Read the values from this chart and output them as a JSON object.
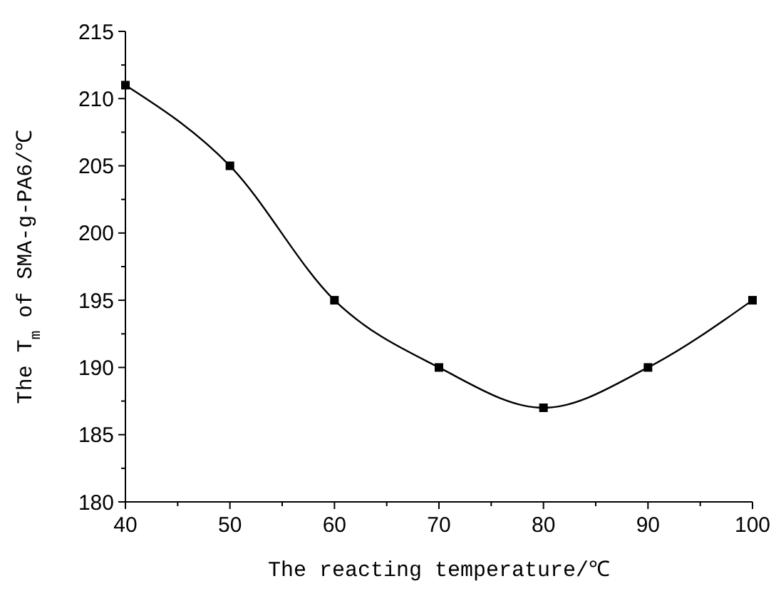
{
  "chart_data": {
    "type": "line",
    "xlabel": "The reacting temperature/℃",
    "ylabel": "The T$_{m}$ of SMA-g-PA6/℃",
    "x": [
      40,
      50,
      60,
      70,
      80,
      90,
      100
    ],
    "series": [
      {
        "color": "#000000",
        "values": [
          211,
          205,
          195,
          190,
          187,
          190,
          195
        ]
      }
    ],
    "marker": "square",
    "line_style": "solid",
    "xlim": [
      40,
      100
    ],
    "xticks": [
      40,
      {
        "value": 45,
        "label": null
      },
      50,
      {
        "value": 55,
        "label": null
      },
      60,
      {
        "value": 65,
        "label": null
      },
      70,
      {
        "value": 75,
        "label": null
      },
      80,
      {
        "value": 85,
        "label": null
      },
      90,
      {
        "value": 95,
        "label": null
      },
      100
    ],
    "ylim": [
      180,
      215
    ],
    "yticks": [
      180,
      {
        "value": 182.5,
        "label": null
      },
      185,
      {
        "value": 187.5,
        "label": null
      },
      190,
      {
        "value": 192.5,
        "label": null
      },
      195,
      {
        "value": 197.5,
        "label": null
      },
      200,
      {
        "value": 202.5,
        "label": null
      },
      205,
      {
        "value": 207.5,
        "label": null
      },
      210,
      {
        "value": 212.5,
        "label": null
      },
      215
    ]
  }
}
